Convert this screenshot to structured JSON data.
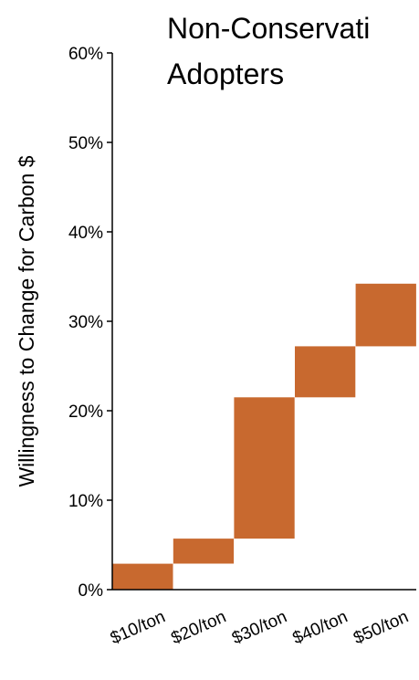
{
  "chart_data": {
    "type": "bar",
    "subtype": "waterfall",
    "title_lines": [
      "Non-Conservati",
      "Adopters"
    ],
    "ylabel": "Willingness to Change for Carbon $",
    "xlabel": "",
    "categories": [
      "$10/ton",
      "$20/ton",
      "$30/ton",
      "$40/ton",
      "$50/ton"
    ],
    "series": [
      {
        "ranges": [
          [
            0,
            2.9
          ],
          [
            2.9,
            5.7
          ],
          [
            5.7,
            21.5
          ],
          [
            21.5,
            27.2
          ],
          [
            27.2,
            34.2
          ]
        ]
      }
    ],
    "yticks": [
      "0%",
      "10%",
      "20%",
      "30%",
      "40%",
      "50%",
      "60%"
    ],
    "ylim": [
      0,
      60
    ],
    "grid": false,
    "legend": "none",
    "colors": {
      "bar": "#C8692F",
      "axis": "#000000",
      "text": "#000000"
    }
  }
}
